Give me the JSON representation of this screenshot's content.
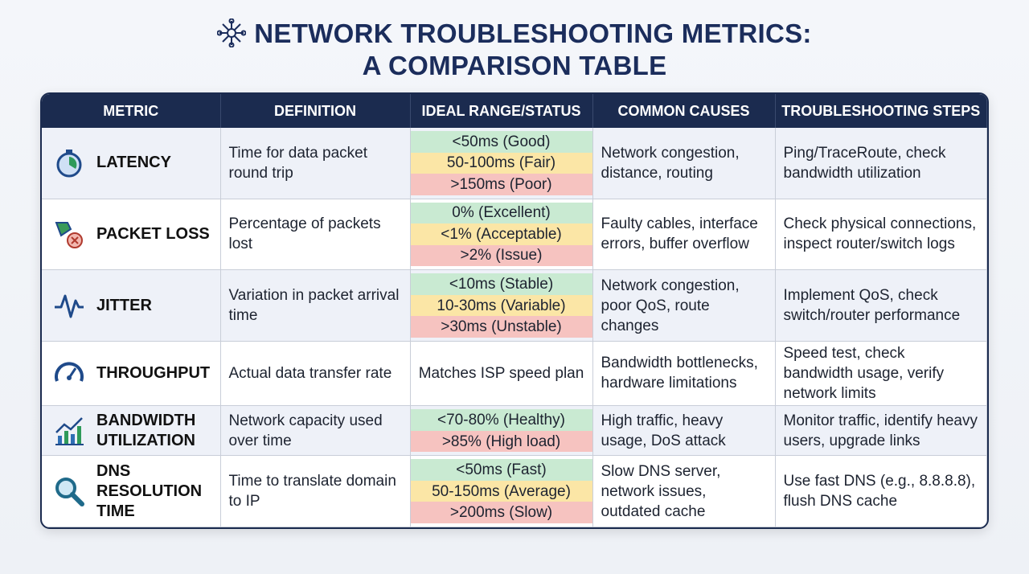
{
  "header": {
    "title_lines": [
      "NETWORK TROUBLESHOOTING METRICS:",
      "A COMPARISON TABLE"
    ]
  },
  "table": {
    "columns": [
      "METRIC",
      "DEFINITION",
      "IDEAL RANGE/STATUS",
      "COMMON CAUSES",
      "TROUBLESHOOTING STEPS"
    ],
    "rows": [
      {
        "metric": "LATENCY",
        "definition": "Time for data packet round trip",
        "ranges": [
          {
            "text": "<50ms (Good)",
            "color": "#c9ead2"
          },
          {
            "text": "50-100ms (Fair)",
            "color": "#fbe6a6"
          },
          {
            "text": ">150ms (Poor)",
            "color": "#f6c3c0"
          }
        ],
        "causes": "Network congestion, distance, routing",
        "steps": "Ping/TraceRoute, check bandwidth utilization"
      },
      {
        "metric": "PACKET LOSS",
        "definition": "Percentage of packets lost",
        "ranges": [
          {
            "text": "0% (Excellent)",
            "color": "#c9ead2"
          },
          {
            "text": "<1% (Acceptable)",
            "color": "#fbe6a6"
          },
          {
            "text": ">2% (Issue)",
            "color": "#f6c3c0"
          }
        ],
        "causes": "Faulty cables, interface errors, buffer overflow",
        "steps": "Check physical connections, inspect router/switch logs"
      },
      {
        "metric": "JITTER",
        "definition": "Variation in packet arrival time",
        "ranges": [
          {
            "text": "<10ms (Stable)",
            "color": "#c9ead2"
          },
          {
            "text": "10-30ms (Variable)",
            "color": "#fbe6a6"
          },
          {
            "text": ">30ms (Unstable)",
            "color": "#f6c3c0"
          }
        ],
        "causes": "Network congestion, poor QoS, route changes",
        "steps": "Implement QoS, check switch/router performance"
      },
      {
        "metric": "THROUGHPUT",
        "definition": "Actual data transfer rate",
        "ranges": [
          {
            "text": "Matches ISP speed plan"
          }
        ],
        "causes": "Bandwidth bottlenecks, hardware limitations",
        "steps": "Speed test, check bandwidth usage, verify network limits"
      },
      {
        "metric": "BANDWIDTH UTILIZATION",
        "definition": "Network capacity used over time",
        "ranges": [
          {
            "text": "<70-80% (Healthy)",
            "color": "#c9ead2"
          },
          {
            "text": ">85% (High load)",
            "color": "#f6c3c0"
          }
        ],
        "causes": "High traffic, heavy usage, DoS attack",
        "steps": "Monitor traffic, identify heavy users, upgrade links"
      },
      {
        "metric": "DNS RESOLUTION TIME",
        "definition": "Time to translate domain to IP",
        "ranges": [
          {
            "text": "<50ms (Fast)",
            "color": "#c9ead2"
          },
          {
            "text": "50-150ms (Average)",
            "color": "#fbe6a6"
          },
          {
            "text": ">200ms (Slow)",
            "color": "#f6c3c0"
          }
        ],
        "causes": "Slow DNS server, network issues, outdated cache",
        "steps": "Use fast DNS (e.g., 8.8.8.8), flush DNS cache"
      }
    ]
  }
}
